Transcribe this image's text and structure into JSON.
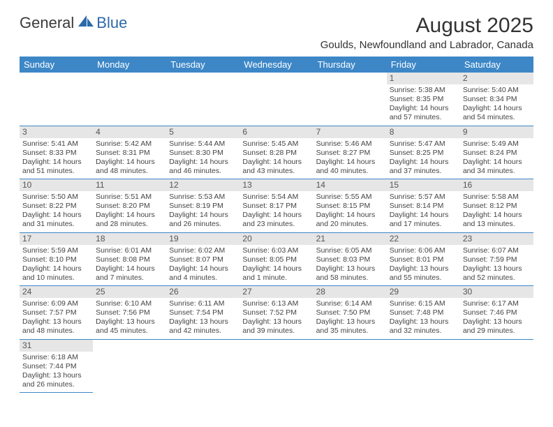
{
  "logo": {
    "part1": "General",
    "part2": "Blue",
    "color1": "#4a4a4a",
    "color2": "#2b6aa8"
  },
  "title": "August 2025",
  "location": "Goulds, Newfoundland and Labrador, Canada",
  "accent_color": "#3d87c7",
  "daynum_bg": "#e6e6e6",
  "weekdays": [
    "Sunday",
    "Monday",
    "Tuesday",
    "Wednesday",
    "Thursday",
    "Friday",
    "Saturday"
  ],
  "weeks": [
    [
      null,
      null,
      null,
      null,
      null,
      {
        "n": "1",
        "sr": "5:38 AM",
        "ss": "8:35 PM",
        "dl": "14 hours and 57 minutes."
      },
      {
        "n": "2",
        "sr": "5:40 AM",
        "ss": "8:34 PM",
        "dl": "14 hours and 54 minutes."
      }
    ],
    [
      {
        "n": "3",
        "sr": "5:41 AM",
        "ss": "8:33 PM",
        "dl": "14 hours and 51 minutes."
      },
      {
        "n": "4",
        "sr": "5:42 AM",
        "ss": "8:31 PM",
        "dl": "14 hours and 48 minutes."
      },
      {
        "n": "5",
        "sr": "5:44 AM",
        "ss": "8:30 PM",
        "dl": "14 hours and 46 minutes."
      },
      {
        "n": "6",
        "sr": "5:45 AM",
        "ss": "8:28 PM",
        "dl": "14 hours and 43 minutes."
      },
      {
        "n": "7",
        "sr": "5:46 AM",
        "ss": "8:27 PM",
        "dl": "14 hours and 40 minutes."
      },
      {
        "n": "8",
        "sr": "5:47 AM",
        "ss": "8:25 PM",
        "dl": "14 hours and 37 minutes."
      },
      {
        "n": "9",
        "sr": "5:49 AM",
        "ss": "8:24 PM",
        "dl": "14 hours and 34 minutes."
      }
    ],
    [
      {
        "n": "10",
        "sr": "5:50 AM",
        "ss": "8:22 PM",
        "dl": "14 hours and 31 minutes."
      },
      {
        "n": "11",
        "sr": "5:51 AM",
        "ss": "8:20 PM",
        "dl": "14 hours and 28 minutes."
      },
      {
        "n": "12",
        "sr": "5:53 AM",
        "ss": "8:19 PM",
        "dl": "14 hours and 26 minutes."
      },
      {
        "n": "13",
        "sr": "5:54 AM",
        "ss": "8:17 PM",
        "dl": "14 hours and 23 minutes."
      },
      {
        "n": "14",
        "sr": "5:55 AM",
        "ss": "8:15 PM",
        "dl": "14 hours and 20 minutes."
      },
      {
        "n": "15",
        "sr": "5:57 AM",
        "ss": "8:14 PM",
        "dl": "14 hours and 17 minutes."
      },
      {
        "n": "16",
        "sr": "5:58 AM",
        "ss": "8:12 PM",
        "dl": "14 hours and 13 minutes."
      }
    ],
    [
      {
        "n": "17",
        "sr": "5:59 AM",
        "ss": "8:10 PM",
        "dl": "14 hours and 10 minutes."
      },
      {
        "n": "18",
        "sr": "6:01 AM",
        "ss": "8:08 PM",
        "dl": "14 hours and 7 minutes."
      },
      {
        "n": "19",
        "sr": "6:02 AM",
        "ss": "8:07 PM",
        "dl": "14 hours and 4 minutes."
      },
      {
        "n": "20",
        "sr": "6:03 AM",
        "ss": "8:05 PM",
        "dl": "14 hours and 1 minute."
      },
      {
        "n": "21",
        "sr": "6:05 AM",
        "ss": "8:03 PM",
        "dl": "13 hours and 58 minutes."
      },
      {
        "n": "22",
        "sr": "6:06 AM",
        "ss": "8:01 PM",
        "dl": "13 hours and 55 minutes."
      },
      {
        "n": "23",
        "sr": "6:07 AM",
        "ss": "7:59 PM",
        "dl": "13 hours and 52 minutes."
      }
    ],
    [
      {
        "n": "24",
        "sr": "6:09 AM",
        "ss": "7:57 PM",
        "dl": "13 hours and 48 minutes."
      },
      {
        "n": "25",
        "sr": "6:10 AM",
        "ss": "7:56 PM",
        "dl": "13 hours and 45 minutes."
      },
      {
        "n": "26",
        "sr": "6:11 AM",
        "ss": "7:54 PM",
        "dl": "13 hours and 42 minutes."
      },
      {
        "n": "27",
        "sr": "6:13 AM",
        "ss": "7:52 PM",
        "dl": "13 hours and 39 minutes."
      },
      {
        "n": "28",
        "sr": "6:14 AM",
        "ss": "7:50 PM",
        "dl": "13 hours and 35 minutes."
      },
      {
        "n": "29",
        "sr": "6:15 AM",
        "ss": "7:48 PM",
        "dl": "13 hours and 32 minutes."
      },
      {
        "n": "30",
        "sr": "6:17 AM",
        "ss": "7:46 PM",
        "dl": "13 hours and 29 minutes."
      }
    ],
    [
      {
        "n": "31",
        "sr": "6:18 AM",
        "ss": "7:44 PM",
        "dl": "13 hours and 26 minutes."
      },
      null,
      null,
      null,
      null,
      null,
      null
    ]
  ],
  "labels": {
    "sunrise": "Sunrise:",
    "sunset": "Sunset:",
    "daylight": "Daylight:"
  }
}
